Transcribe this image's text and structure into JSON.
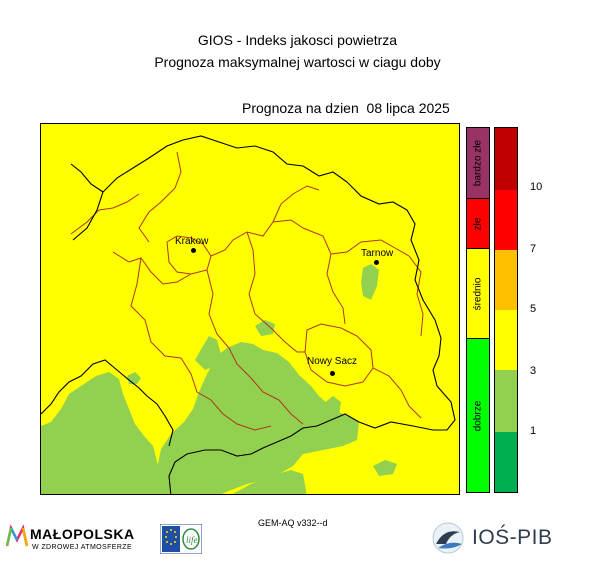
{
  "header": {
    "title_line1": "GIOS - Indeks jakosci powietrza",
    "title_line2": "Prognoza maksymalnej wartosci w ciagu doby",
    "date_prefix": "Prognoza na dzien",
    "date_value": "08 lipca 2025"
  },
  "cities": [
    {
      "name": "Krakow",
      "label": "Krakow"
    },
    {
      "name": "Tarnow",
      "label": "Tarnow"
    },
    {
      "name": "Nowy Sacz",
      "label": "Nowy Sacz"
    }
  ],
  "legend": {
    "categories": [
      {
        "label": "bardzo złe",
        "color": "#993366"
      },
      {
        "label": "złe",
        "color": "#ff0000"
      },
      {
        "label": "średnio",
        "color": "#ffff00"
      },
      {
        "label": "dobrze",
        "color": "#00ff00"
      }
    ],
    "scale_colors": [
      "#00b050",
      "#92d050",
      "#ffff00",
      "#ffc000",
      "#ff0000",
      "#c00000"
    ],
    "ticks": [
      "1",
      "3",
      "5",
      "7",
      "10"
    ]
  },
  "map_colors": {
    "moderate": "#ffff00",
    "good": "#92d050"
  },
  "footer": {
    "model": "GEM-AQ v332--d",
    "logo_malopolska": "MAŁOPOLSKA",
    "logo_malopolska_sub": "W ZDROWEJ ATMOSFERZE",
    "logo_ios": "IOŚ-PIB",
    "logo_life": "life"
  }
}
